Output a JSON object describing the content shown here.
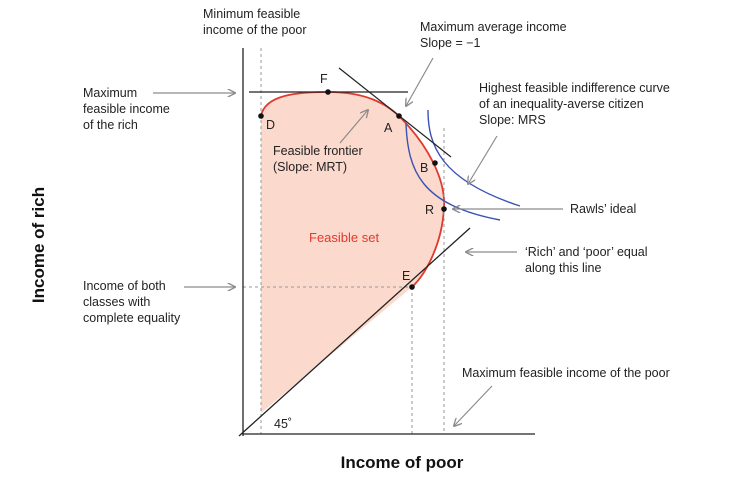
{
  "axes": {
    "x_title": "Income of poor",
    "y_title": "Income of rich"
  },
  "points": {
    "F": "F",
    "D": "D",
    "A": "A",
    "B": "B",
    "R": "R",
    "E": "E"
  },
  "angle_label": "45˚",
  "feasible_set_label": "Feasible set",
  "annotations": {
    "min_feasible_poor": [
      "Minimum feasible",
      "income of the poor"
    ],
    "max_average_income": [
      "Maximum average income",
      "Slope = −1"
    ],
    "highest_indifference": [
      "Highest feasible indifference curve",
      "of an inequality-averse citizen",
      "Slope: MRS"
    ],
    "max_feasible_rich": [
      "Maximum",
      "feasible income",
      "of the rich"
    ],
    "feasible_frontier": [
      "Feasible frontier",
      "(Slope: MRT)"
    ],
    "rawls_ideal": "Rawls’ ideal",
    "rich_poor_equal": [
      "‘Rich’ and ‘poor’ equal",
      "along this line"
    ],
    "income_equality": [
      "Income of both",
      "classes with",
      "complete equality"
    ],
    "max_feasible_poor": "Maximum feasible income of the poor"
  },
  "colors": {
    "frontier": "#e03a2f",
    "feasible_fill": "#fbd9cc",
    "indifference": "#3a52b5",
    "axis": "#222222",
    "guide": "#999999",
    "arrow": "#8c8c8c"
  }
}
